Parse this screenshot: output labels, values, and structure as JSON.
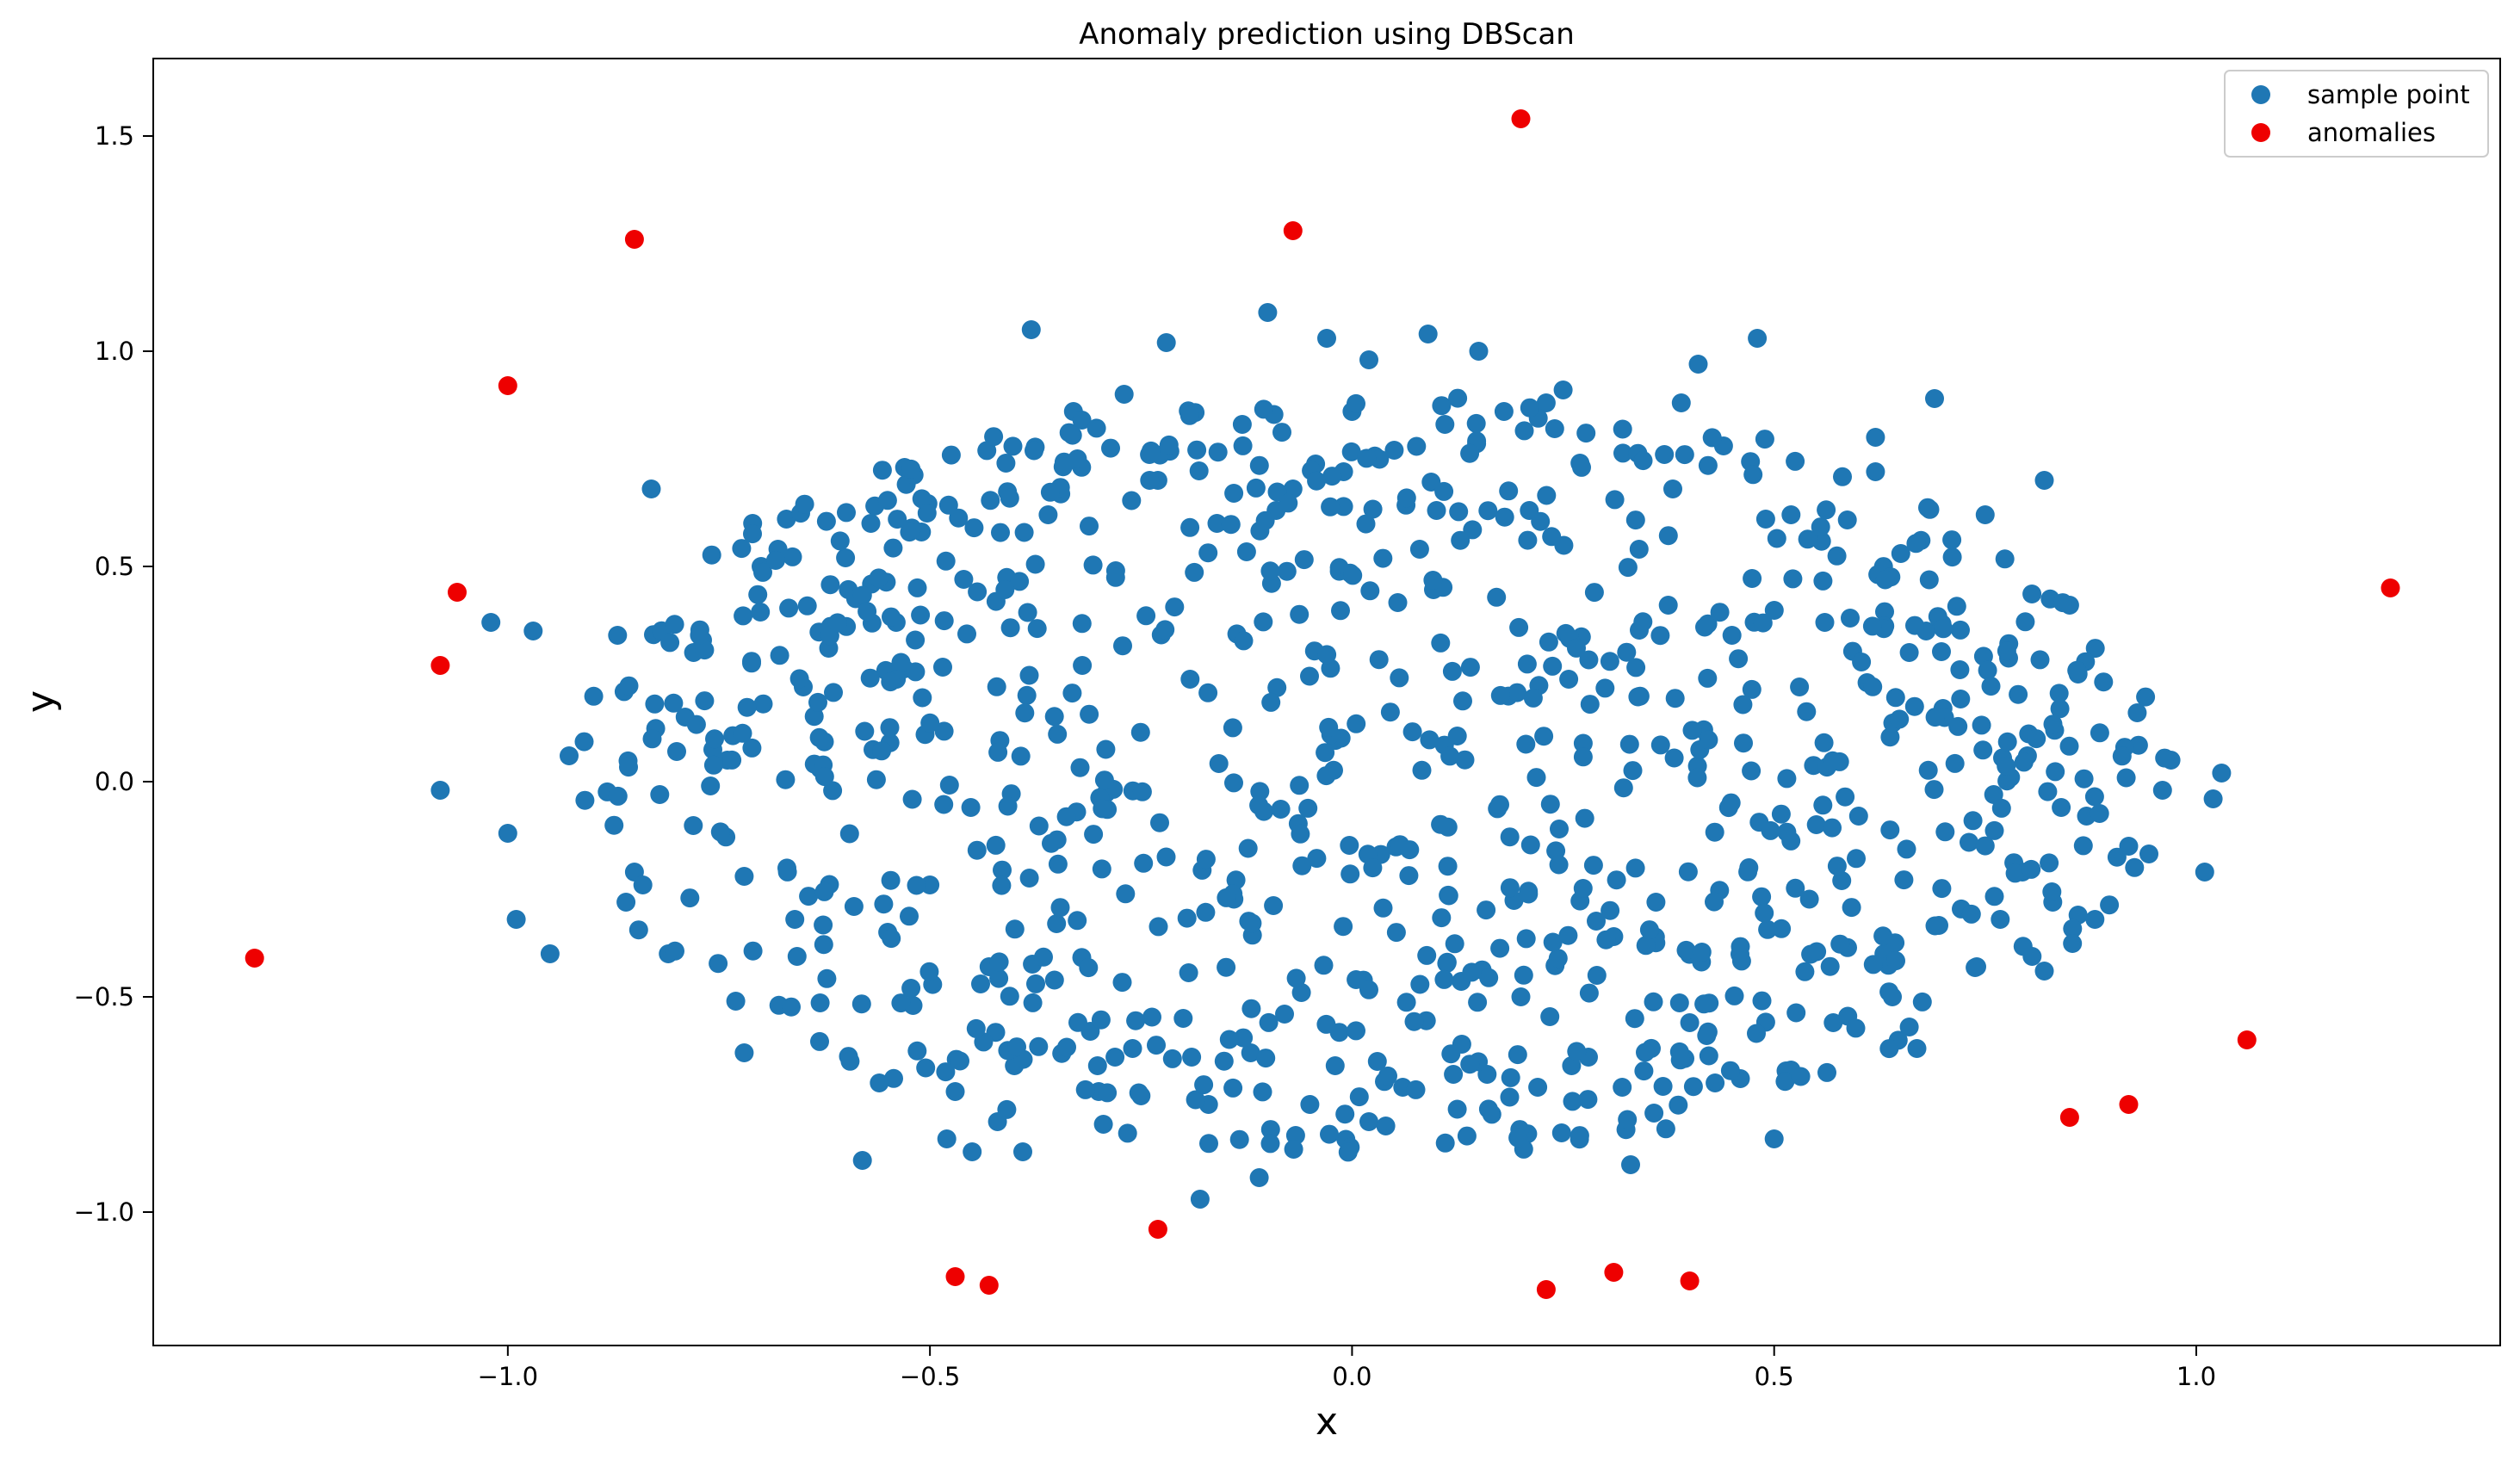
{
  "chart_data": {
    "type": "scatter",
    "title": "Anomaly prediction using DBScan",
    "xlabel": "x",
    "ylabel": "y",
    "xlim": [
      -1.42,
      1.36
    ],
    "ylim": [
      -1.31,
      1.68
    ],
    "xticks": [
      -1.0,
      -0.5,
      0.0,
      0.5,
      1.0
    ],
    "yticks": [
      -1.0,
      -0.5,
      0.0,
      0.5,
      1.0,
      1.5
    ],
    "xtick_labels": [
      "−1.0",
      "−0.5",
      "0.0",
      "0.5",
      "1.0"
    ],
    "ytick_labels": [
      "−1.0",
      "−0.5",
      "0.0",
      "0.5",
      "1.0",
      "1.5"
    ],
    "grid": false,
    "legend_position": "top-right",
    "series": [
      {
        "name": "sample point",
        "color": "#1f77b4",
        "sample_size": 1000,
        "distribution": "approximately uniform within ellipse",
        "x_range": [
          -1.08,
          1.03
        ],
        "y_range": [
          -0.97,
          1.09
        ],
        "points": [
          [
            -1.08,
            -0.02
          ],
          [
            -1.02,
            0.37
          ],
          [
            -1.0,
            -0.12
          ],
          [
            -0.99,
            -0.32
          ],
          [
            -0.97,
            0.35
          ],
          [
            -0.95,
            -0.4
          ],
          [
            -0.87,
            0.34
          ],
          [
            -0.86,
            -0.28
          ],
          [
            -0.85,
            -0.21
          ],
          [
            -0.84,
            -0.24
          ],
          [
            -0.83,
            0.68
          ],
          [
            -0.82,
            -0.03
          ],
          [
            -0.81,
            -0.4
          ],
          [
            -0.8,
            0.07
          ],
          [
            -0.79,
            0.15
          ],
          [
            -0.78,
            0.3
          ],
          [
            -0.76,
            -0.01
          ],
          [
            -0.74,
            0.05
          ],
          [
            -0.73,
            -0.51
          ],
          [
            -0.72,
            -0.63
          ],
          [
            -0.72,
            -0.22
          ],
          [
            -0.71,
            0.6
          ],
          [
            -0.7,
            0.5
          ],
          [
            -0.68,
            0.54
          ],
          [
            -0.67,
            0.61
          ],
          [
            -0.66,
            -0.32
          ],
          [
            -0.65,
            0.22
          ],
          [
            -0.63,
            0.03
          ],
          [
            -0.62,
            0.31
          ],
          [
            -0.6,
            0.52
          ],
          [
            -0.59,
            -0.29
          ],
          [
            -0.58,
            -0.88
          ],
          [
            -0.57,
            0.6
          ],
          [
            -0.56,
            -0.7
          ],
          [
            -0.55,
            -0.35
          ],
          [
            -0.54,
            0.37
          ],
          [
            -0.53,
            0.73
          ],
          [
            -0.52,
            -0.52
          ],
          [
            -0.51,
            0.58
          ],
          [
            -0.5,
            -0.24
          ],
          [
            -0.48,
            -0.83
          ],
          [
            -0.47,
            -0.72
          ],
          [
            -0.46,
            0.47
          ],
          [
            -0.45,
            -0.86
          ],
          [
            -0.44,
            -0.47
          ],
          [
            -0.43,
            -0.43
          ],
          [
            -0.42,
            -0.79
          ],
          [
            -0.41,
            0.74
          ],
          [
            -0.4,
            -0.66
          ],
          [
            -0.39,
            -0.86
          ],
          [
            -0.38,
            1.05
          ],
          [
            -0.36,
            0.62
          ],
          [
            -0.35,
            -0.33
          ],
          [
            -0.33,
            0.86
          ],
          [
            -0.32,
            0.84
          ],
          [
            -0.31,
            -0.58
          ],
          [
            -0.3,
            -0.72
          ],
          [
            -0.28,
            0.49
          ],
          [
            -0.27,
            0.9
          ],
          [
            -0.26,
            -0.62
          ],
          [
            -0.25,
            -0.73
          ],
          [
            -0.24,
            0.76
          ],
          [
            -0.23,
            0.7
          ],
          [
            -0.22,
            1.02
          ],
          [
            -0.2,
            -0.55
          ],
          [
            -0.19,
            -0.64
          ],
          [
            -0.18,
            -0.97
          ],
          [
            -0.17,
            -0.75
          ],
          [
            -0.16,
            0.6
          ],
          [
            -0.14,
            0.67
          ],
          [
            -0.13,
            0.83
          ],
          [
            -0.12,
            -0.63
          ],
          [
            -0.11,
            -0.92
          ],
          [
            -0.1,
            1.09
          ],
          [
            -0.09,
            0.63
          ],
          [
            -0.08,
            -0.54
          ],
          [
            -0.07,
            0.68
          ],
          [
            -0.06,
            -0.49
          ],
          [
            -0.05,
            -0.75
          ],
          [
            -0.03,
            1.03
          ],
          [
            -0.02,
            -0.66
          ],
          [
            -0.01,
            0.72
          ],
          [
            0.0,
            0.86
          ],
          [
            0.02,
            0.98
          ],
          [
            0.02,
            -0.79
          ],
          [
            0.03,
            -0.65
          ],
          [
            0.04,
            -0.8
          ],
          [
            0.05,
            0.77
          ],
          [
            0.06,
            -0.71
          ],
          [
            0.08,
            0.54
          ],
          [
            0.09,
            1.04
          ],
          [
            0.1,
            0.63
          ],
          [
            0.11,
            0.83
          ],
          [
            0.12,
            -0.68
          ],
          [
            0.13,
            -0.61
          ],
          [
            0.15,
            1.0
          ],
          [
            0.16,
            -0.68
          ],
          [
            0.18,
            0.86
          ],
          [
            0.2,
            -0.5
          ],
          [
            0.21,
            0.63
          ],
          [
            0.22,
            -0.71
          ],
          [
            0.23,
            0.88
          ],
          [
            0.24,
            0.82
          ],
          [
            0.25,
            0.91
          ],
          [
            0.26,
            -0.66
          ],
          [
            0.27,
            0.74
          ],
          [
            0.28,
            -0.64
          ],
          [
            0.29,
            -0.45
          ],
          [
            0.31,
            -0.36
          ],
          [
            0.32,
            -0.71
          ],
          [
            0.33,
            -0.89
          ],
          [
            0.34,
            0.54
          ],
          [
            0.36,
            -0.28
          ],
          [
            0.37,
            0.76
          ],
          [
            0.38,
            0.68
          ],
          [
            0.39,
            0.88
          ],
          [
            0.4,
            -0.56
          ],
          [
            0.41,
            0.97
          ],
          [
            0.42,
            -0.59
          ],
          [
            0.43,
            -0.7
          ],
          [
            0.44,
            0.78
          ],
          [
            0.45,
            0.34
          ],
          [
            0.46,
            -0.69
          ],
          [
            0.47,
            -0.2
          ],
          [
            0.48,
            1.03
          ],
          [
            0.49,
            0.61
          ],
          [
            0.5,
            -0.83
          ],
          [
            0.52,
            0.62
          ],
          [
            0.52,
            -0.67
          ],
          [
            0.53,
            0.22
          ],
          [
            0.55,
            -0.1
          ],
          [
            0.56,
            0.37
          ],
          [
            0.57,
            -0.56
          ],
          [
            0.58,
            -0.23
          ],
          [
            0.59,
            0.38
          ],
          [
            0.6,
            -0.08
          ],
          [
            0.61,
            0.23
          ],
          [
            0.62,
            0.8
          ],
          [
            0.62,
            0.72
          ],
          [
            0.63,
            -0.4
          ],
          [
            0.64,
            -0.5
          ],
          [
            0.65,
            0.53
          ],
          [
            0.66,
            -0.57
          ],
          [
            0.66,
            0.3
          ],
          [
            0.68,
            0.35
          ],
          [
            0.69,
            0.89
          ],
          [
            0.7,
            0.17
          ],
          [
            0.72,
            0.26
          ],
          [
            0.74,
            -0.43
          ],
          [
            0.75,
            0.62
          ],
          [
            0.76,
            -0.03
          ],
          [
            0.78,
            0.01
          ],
          [
            0.8,
            0.06
          ],
          [
            0.82,
            -0.44
          ],
          [
            0.82,
            0.7
          ],
          [
            0.83,
            -0.28
          ],
          [
            0.84,
            -0.06
          ],
          [
            0.85,
            0.41
          ],
          [
            0.86,
            -0.31
          ],
          [
            0.86,
            0.25
          ],
          [
            0.87,
            -0.08
          ],
          [
            0.88,
            -0.32
          ],
          [
            0.92,
            -0.15
          ],
          [
            0.93,
            0.16
          ],
          [
            0.96,
            -0.02
          ],
          [
            0.97,
            0.05
          ],
          [
            1.01,
            -0.21
          ],
          [
            1.02,
            -0.04
          ],
          [
            1.03,
            0.02
          ]
        ]
      },
      {
        "name": "anomalies",
        "color": "#ee0000",
        "points": [
          [
            -1.3,
            -0.41
          ],
          [
            -1.08,
            0.27
          ],
          [
            -1.06,
            0.44
          ],
          [
            -1.0,
            0.92
          ],
          [
            -0.85,
            1.26
          ],
          [
            -0.47,
            -1.15
          ],
          [
            -0.43,
            -1.17
          ],
          [
            -0.23,
            -1.04
          ],
          [
            -0.07,
            1.28
          ],
          [
            0.2,
            1.54
          ],
          [
            0.23,
            -1.18
          ],
          [
            0.31,
            -1.14
          ],
          [
            0.4,
            -1.16
          ],
          [
            0.85,
            -0.78
          ],
          [
            0.92,
            -0.75
          ],
          [
            1.06,
            -0.6
          ],
          [
            1.23,
            0.45
          ]
        ]
      }
    ]
  }
}
